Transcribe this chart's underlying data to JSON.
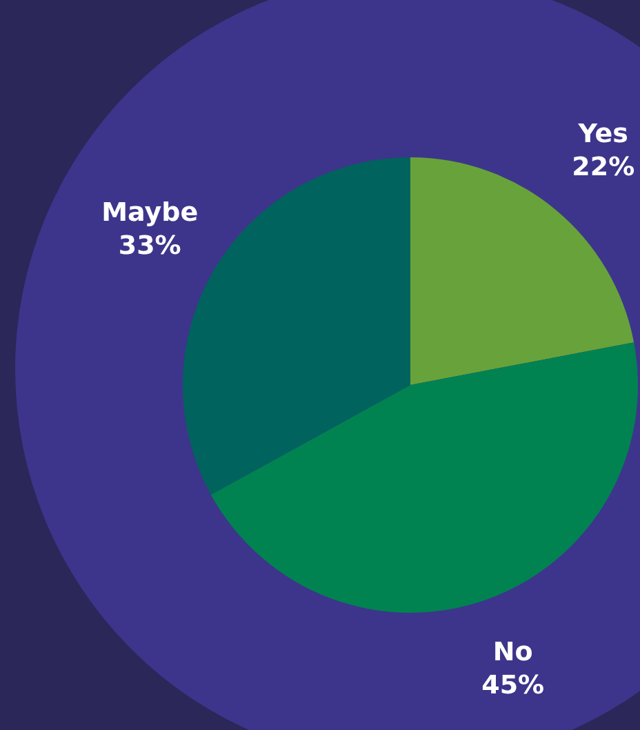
{
  "chart_data": {
    "type": "pie",
    "categories": [
      "Yes",
      "No",
      "Maybe"
    ],
    "values": [
      22,
      45,
      33
    ],
    "value_labels": [
      "22%",
      "45%",
      "33%"
    ],
    "colors": [
      "#68a23a",
      "#008351",
      "#00635e"
    ],
    "legend": false
  }
}
